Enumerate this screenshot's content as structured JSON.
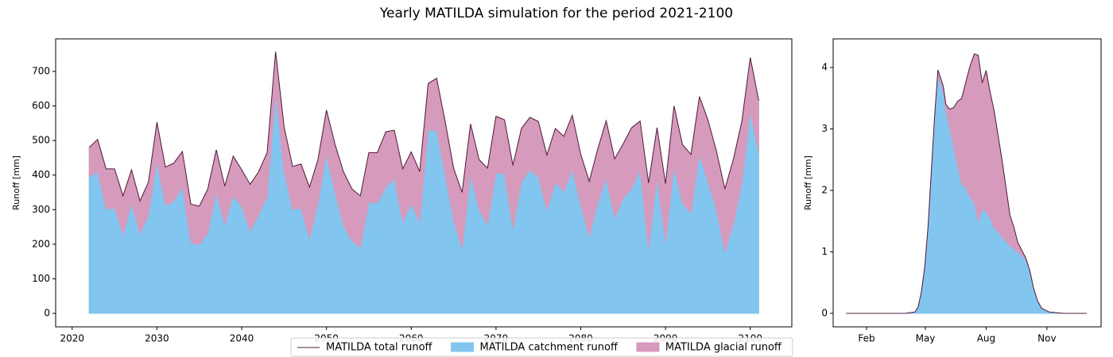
{
  "title": "Yearly MATILDA simulation for the period 2021-2100",
  "legend": "bottom",
  "chart_data": [
    {
      "type": "area",
      "y_label": "Runoff [mm]",
      "x": [
        2022,
        2023,
        2024,
        2025,
        2026,
        2027,
        2028,
        2029,
        2030,
        2031,
        2032,
        2033,
        2034,
        2035,
        2036,
        2037,
        2038,
        2039,
        2040,
        2041,
        2042,
        2043,
        2044,
        2045,
        2046,
        2047,
        2048,
        2049,
        2050,
        2051,
        2052,
        2053,
        2054,
        2055,
        2056,
        2057,
        2058,
        2059,
        2060,
        2061,
        2062,
        2063,
        2064,
        2065,
        2066,
        2067,
        2068,
        2069,
        2070,
        2071,
        2072,
        2073,
        2074,
        2075,
        2076,
        2077,
        2078,
        2079,
        2080,
        2081,
        2082,
        2083,
        2084,
        2085,
        2086,
        2087,
        2088,
        2089,
        2090,
        2091,
        2092,
        2093,
        2094,
        2095,
        2096,
        2097,
        2098,
        2099,
        2100,
        2101
      ],
      "xlim": [
        2018.05,
        2104.9
      ],
      "xticks": [
        2020,
        2030,
        2040,
        2050,
        2060,
        2070,
        2080,
        2090,
        2100
      ],
      "ylim": [
        -39,
        794
      ],
      "yticks": [
        0,
        100,
        200,
        300,
        400,
        500,
        600,
        700
      ],
      "series": [
        {
          "name": "MATILDA total runoff",
          "type": "line",
          "color": "#4f1f3c",
          "values": [
            480,
            503,
            418,
            418,
            340,
            415,
            325,
            380,
            553,
            423,
            435,
            468,
            316,
            310,
            360,
            473,
            368,
            455,
            415,
            373,
            410,
            465,
            757,
            540,
            425,
            432,
            365,
            445,
            588,
            490,
            410,
            360,
            340,
            465,
            465,
            525,
            530,
            418,
            467,
            410,
            665,
            680,
            555,
            420,
            350,
            548,
            445,
            420,
            570,
            560,
            428,
            535,
            567,
            555,
            458,
            535,
            512,
            573,
            460,
            382,
            475,
            557,
            447,
            490,
            537,
            556,
            377,
            537,
            375,
            600,
            488,
            460,
            627,
            560,
            470,
            360,
            445,
            555,
            740,
            615
          ]
        },
        {
          "name": "MATILDA catchment runoff",
          "type": "area",
          "color": "#82c5ef",
          "values": [
            395,
            410,
            302,
            305,
            228,
            318,
            230,
            285,
            440,
            312,
            325,
            367,
            205,
            198,
            233,
            350,
            257,
            340,
            310,
            237,
            285,
            337,
            640,
            412,
            300,
            305,
            217,
            318,
            460,
            350,
            256,
            210,
            190,
            320,
            320,
            365,
            390,
            265,
            318,
            265,
            530,
            530,
            400,
            270,
            188,
            402,
            300,
            258,
            405,
            405,
            245,
            380,
            415,
            395,
            300,
            380,
            352,
            417,
            315,
            222,
            320,
            392,
            277,
            332,
            362,
            415,
            187,
            392,
            205,
            425,
            318,
            290,
            462,
            380,
            302,
            177,
            258,
            375,
            583,
            467
          ]
        },
        {
          "name": "MATILDA glacial runoff",
          "type": "area",
          "color": "#d69abc",
          "values": [
            85,
            93,
            116,
            113,
            112,
            97,
            95,
            95,
            113,
            111,
            110,
            101,
            111,
            112,
            127,
            123,
            111,
            115,
            105,
            136,
            125,
            128,
            117,
            128,
            125,
            127,
            148,
            127,
            128,
            140,
            154,
            150,
            150,
            145,
            145,
            160,
            140,
            153,
            149,
            145,
            135,
            150,
            155,
            150,
            162,
            146,
            145,
            162,
            165,
            155,
            183,
            155,
            152,
            160,
            158,
            155,
            160,
            156,
            145,
            160,
            155,
            165,
            170,
            158,
            175,
            141,
            190,
            145,
            170,
            175,
            170,
            170,
            165,
            180,
            168,
            183,
            187,
            180,
            157,
            148
          ]
        }
      ]
    },
    {
      "type": "area",
      "y_label": "Runoff [mm]",
      "x": [
        1,
        30,
        60,
        90,
        105,
        110,
        115,
        120,
        125,
        130,
        135,
        140,
        148,
        152,
        158,
        164,
        170,
        176,
        182,
        188,
        195,
        201,
        207,
        213,
        219,
        225,
        237,
        249,
        255,
        261,
        273,
        279,
        285,
        291,
        297,
        309,
        330,
        365
      ],
      "xlim": [
        -18.6,
        387
      ],
      "xticks": [
        {
          "value": 32,
          "label": "Feb"
        },
        {
          "value": 121,
          "label": "May"
        },
        {
          "value": 213,
          "label": "Aug"
        },
        {
          "value": 305,
          "label": "Nov"
        }
      ],
      "ylim": [
        -0.22,
        4.465
      ],
      "yticks": [
        0,
        1,
        2,
        3,
        4
      ],
      "series": [
        {
          "type": "line",
          "color": "#4f1f3c",
          "values": [
            0,
            0,
            0,
            0,
            0.02,
            0.1,
            0.35,
            0.75,
            1.4,
            2.3,
            3.2,
            3.96,
            3.7,
            3.4,
            3.32,
            3.35,
            3.45,
            3.5,
            3.75,
            4.0,
            4.22,
            4.2,
            3.75,
            3.95,
            3.6,
            3.3,
            2.5,
            1.6,
            1.4,
            1.15,
            0.9,
            0.7,
            0.4,
            0.2,
            0.08,
            0.02,
            0,
            0
          ]
        },
        {
          "type": "area",
          "color": "#82c5ef",
          "values": [
            0,
            0,
            0,
            0,
            0.02,
            0.1,
            0.35,
            0.75,
            1.4,
            2.3,
            3.2,
            3.9,
            3.6,
            3.3,
            3.0,
            2.7,
            2.4,
            2.1,
            2.05,
            1.9,
            1.8,
            1.5,
            1.7,
            1.65,
            1.55,
            1.4,
            1.25,
            1.1,
            1.05,
            1.0,
            0.88,
            0.7,
            0.4,
            0.2,
            0.08,
            0.02,
            0,
            0
          ]
        },
        {
          "type": "area",
          "color": "#d69abc",
          "values": [
            0,
            0,
            0,
            0,
            0,
            0,
            0,
            0,
            0,
            0,
            0,
            0.06,
            0.1,
            0.1,
            0.32,
            0.65,
            1.05,
            1.4,
            1.7,
            2.1,
            2.42,
            2.7,
            2.05,
            2.3,
            2.05,
            1.9,
            1.25,
            0.5,
            0.35,
            0.15,
            0.02,
            0,
            0,
            0,
            0,
            0,
            0,
            0
          ]
        }
      ]
    }
  ]
}
